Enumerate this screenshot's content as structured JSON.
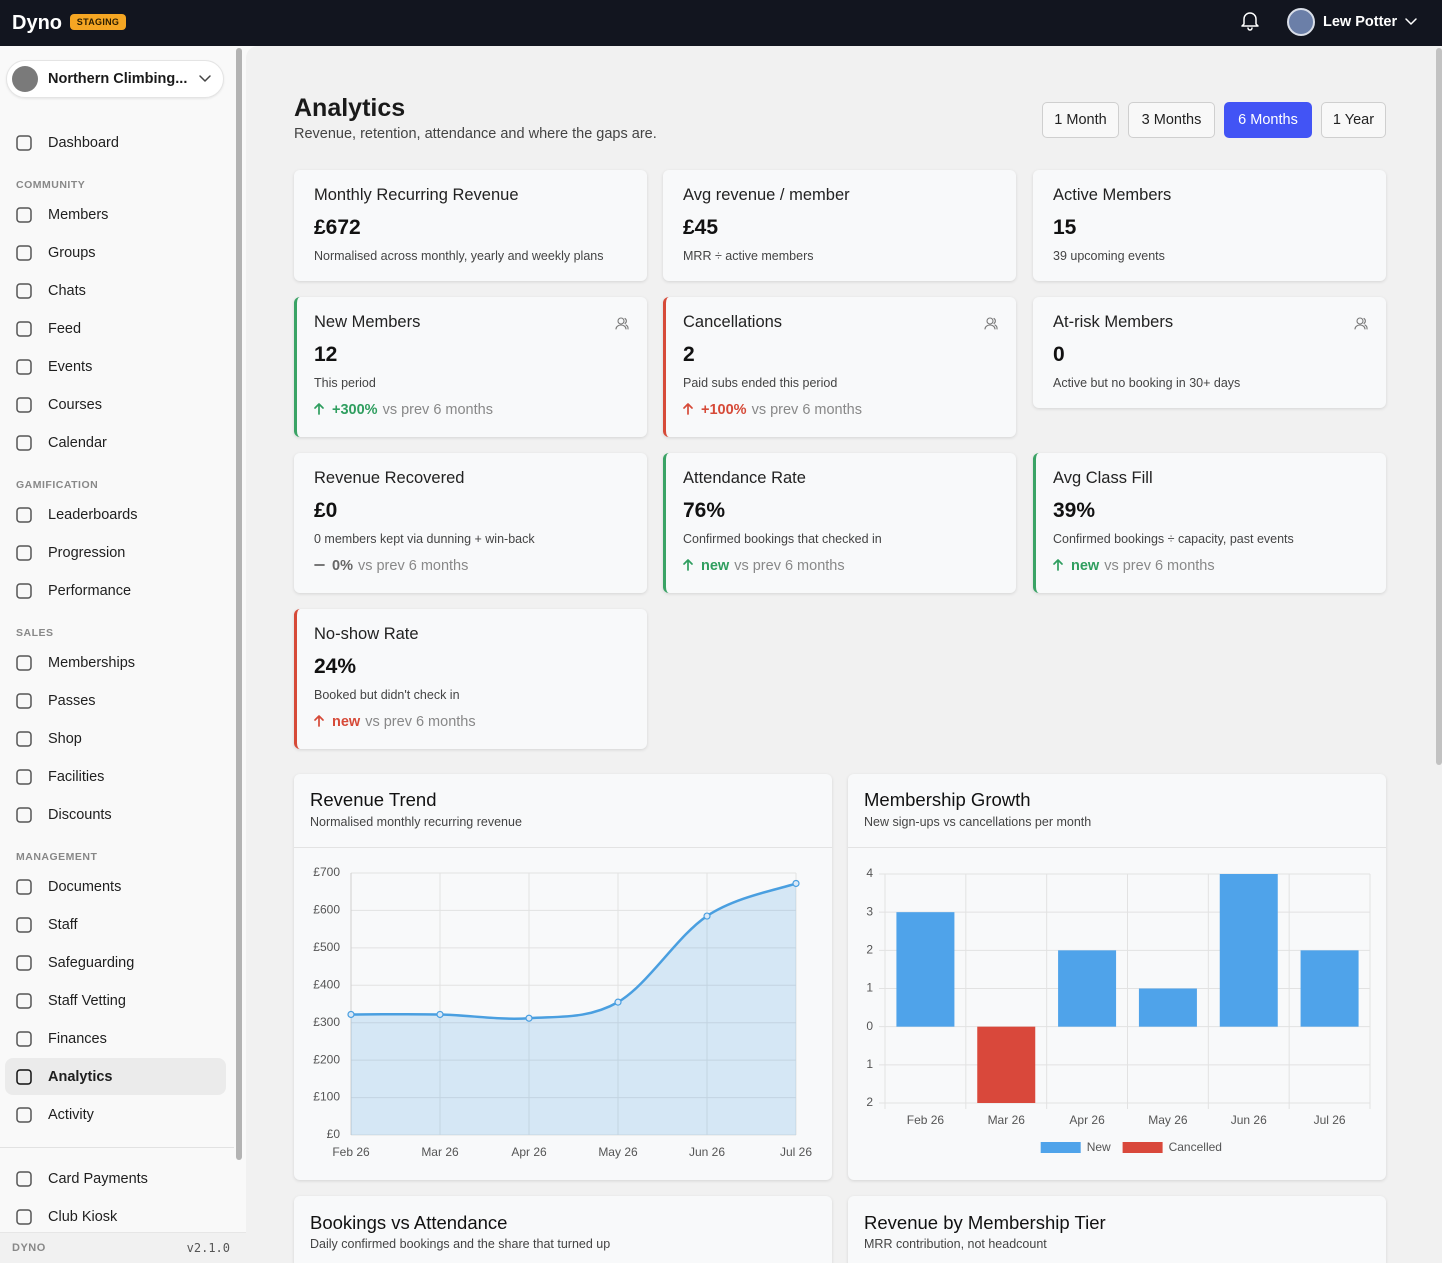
{
  "header": {
    "brand": "Dyno",
    "badge": "STAGING",
    "user": "Lew Potter"
  },
  "sidebar": {
    "org": "Northern Climbing...",
    "top": [
      {
        "label": "Dashboard"
      }
    ],
    "sections": [
      {
        "title": "COMMUNITY",
        "items": [
          {
            "label": "Members"
          },
          {
            "label": "Groups"
          },
          {
            "label": "Chats"
          },
          {
            "label": "Feed"
          },
          {
            "label": "Events"
          },
          {
            "label": "Courses"
          },
          {
            "label": "Calendar"
          }
        ]
      },
      {
        "title": "GAMIFICATION",
        "items": [
          {
            "label": "Leaderboards"
          },
          {
            "label": "Progression"
          },
          {
            "label": "Performance"
          }
        ]
      },
      {
        "title": "SALES",
        "items": [
          {
            "label": "Memberships"
          },
          {
            "label": "Passes"
          },
          {
            "label": "Shop"
          },
          {
            "label": "Facilities"
          },
          {
            "label": "Discounts"
          }
        ]
      },
      {
        "title": "MANAGEMENT",
        "items": [
          {
            "label": "Documents"
          },
          {
            "label": "Staff"
          },
          {
            "label": "Safeguarding"
          },
          {
            "label": "Staff Vetting"
          },
          {
            "label": "Finances"
          },
          {
            "label": "Analytics",
            "active": true
          },
          {
            "label": "Activity"
          }
        ]
      }
    ],
    "bottom": [
      {
        "label": "Card Payments"
      },
      {
        "label": "Club Kiosk"
      }
    ],
    "footer": {
      "brand": "DYNO",
      "version": "v2.1.0"
    }
  },
  "page": {
    "title": "Analytics",
    "subtitle": "Revenue, retention, attendance and where the gaps are.",
    "ranges": [
      {
        "label": "1 Month"
      },
      {
        "label": "3 Months"
      },
      {
        "label": "6 Months",
        "active": true
      },
      {
        "label": "1 Year"
      }
    ]
  },
  "kpis": [
    {
      "title": "Monthly Recurring Revenue",
      "value": "£672",
      "note": "Normalised across monthly, yearly and weekly plans"
    },
    {
      "title": "Avg revenue / member",
      "value": "£45",
      "note": "MRR ÷ active members"
    },
    {
      "title": "Active Members",
      "value": "15",
      "note": "39 upcoming events"
    },
    {
      "title": "New Members",
      "value": "12",
      "note": "This period",
      "accent": "#3aa365",
      "icon": true,
      "delta": {
        "trend": "up",
        "text": "+300%",
        "suffix": "vs prev 6 months",
        "color": "#2f9e5f"
      }
    },
    {
      "title": "Cancellations",
      "value": "2",
      "note": "Paid subs ended this period",
      "accent": "#d64a38",
      "icon": true,
      "delta": {
        "trend": "up",
        "text": "+100%",
        "suffix": "vs prev 6 months",
        "color": "#d64a38"
      }
    },
    {
      "title": "At-risk Members",
      "value": "0",
      "note": "Active but no booking in 30+ days",
      "icon": true
    },
    {
      "title": "Revenue Recovered",
      "value": "£0",
      "note": "0 members kept via dunning + win-back",
      "delta": {
        "trend": "flat",
        "text": "0%",
        "suffix": "vs prev 6 months",
        "color": "#666666"
      }
    },
    {
      "title": "Attendance Rate",
      "value": "76%",
      "note": "Confirmed bookings that checked in",
      "accent": "#3aa365",
      "delta": {
        "trend": "up",
        "text": "new",
        "suffix": "vs prev 6 months",
        "color": "#2f9e5f"
      }
    },
    {
      "title": "Avg Class Fill",
      "value": "39%",
      "note": "Confirmed bookings ÷ capacity, past events",
      "accent": "#3aa365",
      "delta": {
        "trend": "up",
        "text": "new",
        "suffix": "vs prev 6 months",
        "color": "#2f9e5f"
      }
    },
    {
      "title": "No-show Rate",
      "value": "24%",
      "note": "Booked but didn't check in",
      "accent": "#d64a38",
      "delta": {
        "trend": "up",
        "text": "new",
        "suffix": "vs prev 6 months",
        "color": "#d64a38"
      }
    }
  ],
  "chart_data": [
    {
      "type": "area",
      "title": "Revenue Trend",
      "subtitle": "Normalised monthly recurring revenue",
      "categories": [
        "Feb 26",
        "Mar 26",
        "Apr 26",
        "May 26",
        "Jun 26",
        "Jul 26"
      ],
      "values": [
        322,
        322,
        312,
        355,
        585,
        672
      ],
      "color": "#4a9fe0",
      "ylim": [
        0,
        700
      ],
      "yticks": [
        {
          "value": 0,
          "label": "£0"
        },
        {
          "value": 100,
          "label": "£100"
        },
        {
          "value": 200,
          "label": "£200"
        },
        {
          "value": 300,
          "label": "£300"
        },
        {
          "value": 400,
          "label": "£400"
        },
        {
          "value": 500,
          "label": "£500"
        },
        {
          "value": 600,
          "label": "£600"
        },
        {
          "value": 700,
          "label": "£700"
        }
      ],
      "grid": true
    },
    {
      "type": "bar",
      "title": "Membership Growth",
      "subtitle": "New sign-ups vs cancellations per month",
      "categories": [
        "Feb 26",
        "Mar 26",
        "Apr 26",
        "May 26",
        "Jun 26",
        "Jul 26"
      ],
      "series": [
        {
          "name": "New",
          "color": "#4fa3ea",
          "values": [
            3,
            0,
            2,
            1,
            4,
            2
          ]
        },
        {
          "name": "Cancelled",
          "color": "#d9483b",
          "values": [
            0,
            -2,
            0,
            0,
            0,
            0
          ]
        }
      ],
      "ylim": [
        -2,
        4
      ],
      "yticks": [
        4,
        3,
        2,
        1,
        0,
        {
          "value": -1,
          "label": "1"
        },
        {
          "value": -2,
          "label": "2"
        }
      ],
      "grid": true,
      "legend": "bottom"
    }
  ],
  "more_charts": [
    {
      "title": "Bookings vs Attendance",
      "subtitle": "Daily confirmed bookings and the share that turned up"
    },
    {
      "title": "Revenue by Membership Tier",
      "subtitle": "MRR contribution, not headcount"
    }
  ]
}
